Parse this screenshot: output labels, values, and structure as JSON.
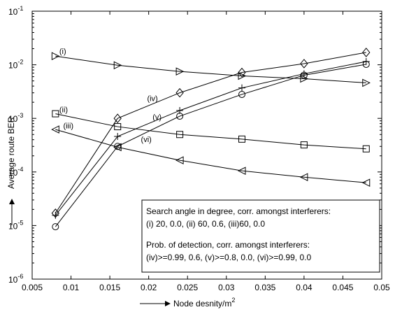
{
  "chart_data": {
    "type": "line",
    "xlabel": "Node desnity/m",
    "xlabel_sup": "2",
    "ylabel": "Average route BER",
    "xlim": [
      0.005,
      0.05
    ],
    "ylim_log10": [
      -6,
      -1
    ],
    "y_scale": "log",
    "x_ticks": [
      {
        "value": 0.005,
        "label": "0.005"
      },
      {
        "value": 0.01,
        "label": "0.01"
      },
      {
        "value": 0.015,
        "label": "0.015"
      },
      {
        "value": 0.02,
        "label": "0.02"
      },
      {
        "value": 0.025,
        "label": "0.025"
      },
      {
        "value": 0.03,
        "label": "0.03"
      },
      {
        "value": 0.035,
        "label": "0.035"
      },
      {
        "value": 0.04,
        "label": "0.04"
      },
      {
        "value": 0.045,
        "label": "0.045"
      },
      {
        "value": 0.05,
        "label": "0.05"
      }
    ],
    "y_ticks": [
      {
        "exp": -1,
        "base": "10",
        "sup": "-1"
      },
      {
        "exp": -2,
        "base": "10",
        "sup": "-2"
      },
      {
        "exp": -3,
        "base": "10",
        "sup": "-3"
      },
      {
        "exp": -4,
        "base": "10",
        "sup": "-4"
      },
      {
        "exp": -5,
        "base": "10",
        "sup": "-5"
      },
      {
        "exp": -6,
        "base": "10",
        "sup": "-6"
      }
    ],
    "series": [
      {
        "name": "(i)",
        "marker": "triangle-right",
        "label_at": {
          "x": 0.0085,
          "y": 0.016
        },
        "x": [
          0.008,
          0.016,
          0.024,
          0.032,
          0.04,
          0.048
        ],
        "y": [
          0.0145,
          0.0098,
          0.0075,
          0.0062,
          0.0055,
          0.0046
        ]
      },
      {
        "name": "(ii)",
        "marker": "square",
        "label_at": {
          "x": 0.0085,
          "y": 0.0013
        },
        "x": [
          0.008,
          0.016,
          0.024,
          0.032,
          0.04,
          0.048
        ],
        "y": [
          0.00122,
          0.0007,
          0.0005,
          0.00041,
          0.00032,
          0.00027
        ]
      },
      {
        "name": "(iii)",
        "marker": "triangle-left",
        "label_at": {
          "x": 0.009,
          "y": 0.00065
        },
        "x": [
          0.008,
          0.016,
          0.024,
          0.032,
          0.04,
          0.048
        ],
        "y": [
          0.00062,
          0.00029,
          0.000165,
          0.000105,
          8e-05,
          6.3e-05
        ]
      },
      {
        "name": "(iv)",
        "marker": "diamond",
        "label_at": {
          "x": 0.0198,
          "y": 0.0021
        },
        "x": [
          0.008,
          0.016,
          0.024,
          0.032,
          0.04,
          0.048
        ],
        "y": [
          1.7e-05,
          0.001,
          0.003,
          0.0072,
          0.0105,
          0.017
        ]
      },
      {
        "name": "(v)",
        "marker": "plus",
        "label_at": {
          "x": 0.0205,
          "y": 0.00095
        },
        "x": [
          0.008,
          0.016,
          0.024,
          0.032,
          0.04,
          0.048
        ],
        "y": [
          1.55e-05,
          0.00046,
          0.0014,
          0.0037,
          0.0068,
          0.0115
        ]
      },
      {
        "name": "(vi)",
        "marker": "circle",
        "label_at": {
          "x": 0.019,
          "y": 0.00036
        },
        "x": [
          0.008,
          0.016,
          0.024,
          0.032,
          0.04,
          0.048
        ],
        "y": [
          9.5e-06,
          0.0003,
          0.0011,
          0.0028,
          0.0064,
          0.0102
        ]
      }
    ],
    "legend": {
      "placement": "bottom-right",
      "lines": [
        "Search angle in degree, corr. amongst interferers:",
        "(i) 20, 0.0,  (ii) 60, 0.6,  (iii)60, 0.0",
        "",
        "Prob. of detection, corr. amongst interferers:",
        "(iv)>=0.99, 0.6,  (v)>=0.8, 0.0,  (vi)>=0.99, 0.0"
      ]
    },
    "grid": false
  }
}
